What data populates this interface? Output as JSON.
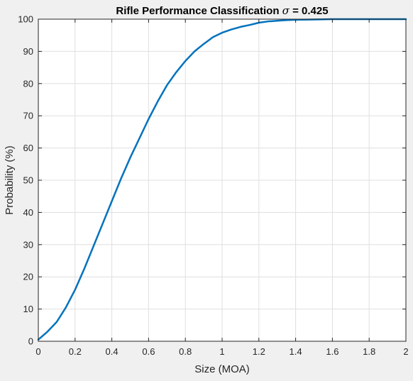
{
  "chart_data": {
    "type": "line",
    "title_prefix": "Rifle Performance Classification",
    "title_symbol": "σ",
    "title_suffix": " = 0.425",
    "xlabel": "Size (MOA)",
    "ylabel": "Probability (%)",
    "xlim": [
      0,
      2
    ],
    "ylim": [
      0,
      100
    ],
    "grid": true,
    "x_ticks": [
      0,
      0.2,
      0.4,
      0.6,
      0.8,
      1,
      1.2,
      1.4,
      1.6,
      1.8,
      2
    ],
    "x_tick_labels": [
      "0",
      "0.2",
      "0.4",
      "0.6",
      "0.8",
      "1",
      "1.2",
      "1.4",
      "1.6",
      "1.8",
      "2"
    ],
    "y_ticks": [
      0,
      10,
      20,
      30,
      40,
      50,
      60,
      70,
      80,
      90,
      100
    ],
    "y_tick_labels": [
      "0",
      "10",
      "20",
      "30",
      "40",
      "50",
      "60",
      "70",
      "80",
      "90",
      "100"
    ],
    "series": [
      {
        "color": "#0072bd",
        "x": [
          0,
          0.05,
          0.1,
          0.15,
          0.2,
          0.25,
          0.3,
          0.35,
          0.4,
          0.45,
          0.5,
          0.55,
          0.6,
          0.65,
          0.7,
          0.75,
          0.8,
          0.85,
          0.9,
          0.95,
          1.0,
          1.05,
          1.1,
          1.15,
          1.2,
          1.25,
          1.3,
          1.35,
          1.4,
          1.5,
          1.6,
          1.7,
          1.8,
          1.9,
          2.0
        ],
        "y": [
          0.5,
          3,
          6,
          10.5,
          16,
          22.5,
          29.5,
          36.5,
          43.5,
          50.5,
          57,
          63,
          69,
          74.5,
          79.5,
          83.5,
          87,
          90,
          92.3,
          94.4,
          95.8,
          96.8,
          97.6,
          98.2,
          98.9,
          99.3,
          99.5,
          99.7,
          99.8,
          99.9,
          100,
          100,
          100,
          100,
          100
        ]
      }
    ]
  }
}
